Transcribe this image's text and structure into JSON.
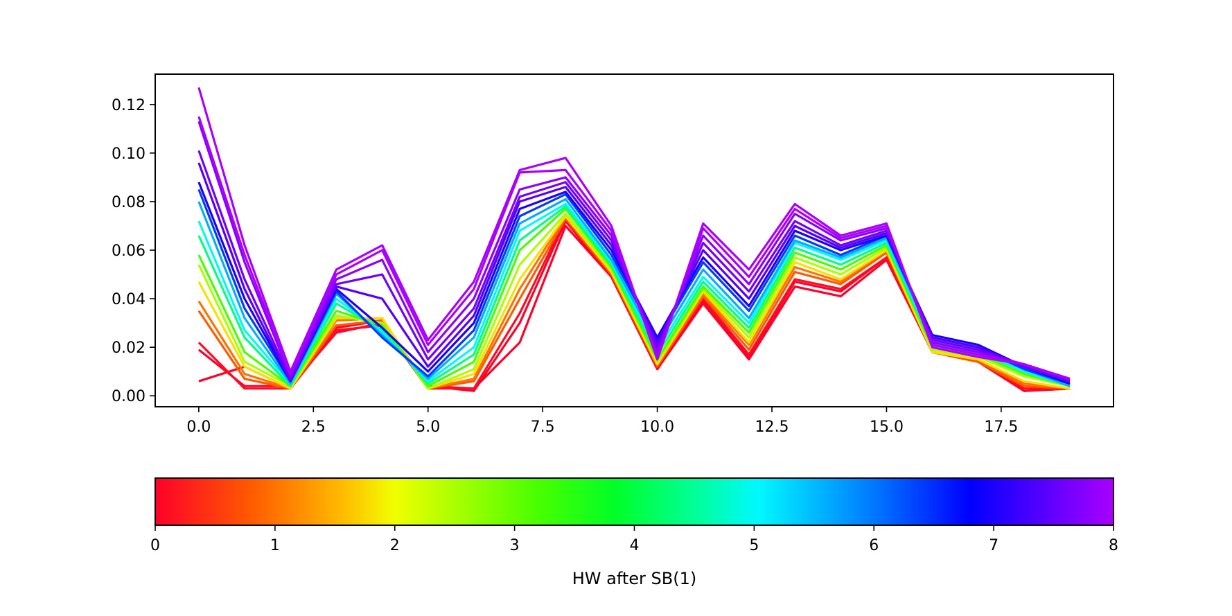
{
  "chart_data": {
    "type": "line",
    "title": "",
    "xlabel": "",
    "ylabel": "",
    "xlim": [
      -0.95,
      19.95
    ],
    "ylim": [
      -0.0045,
      0.1325
    ],
    "x_ticks": [
      "0.0",
      "2.5",
      "5.0",
      "7.5",
      "10.0",
      "12.5",
      "15.0",
      "17.5"
    ],
    "y_ticks": [
      "0.00",
      "0.02",
      "0.04",
      "0.06",
      "0.08",
      "0.10",
      "0.12"
    ],
    "x": [
      0,
      1,
      2,
      3,
      4,
      5,
      6,
      7,
      8,
      9,
      10,
      11,
      12,
      13,
      14,
      15,
      16,
      17,
      18,
      19
    ],
    "grid": false,
    "colormap": "gist_rainbow (red → orange → yellow → green → cyan → blue → violet)",
    "series": [
      {
        "hw": 0.0,
        "values": [
          0.006,
          0.012,
          0.003,
          0.028,
          0.031,
          0.004,
          0.003,
          0.022,
          0.07,
          0.049,
          0.011,
          0.038,
          0.015,
          0.045,
          0.041,
          0.056,
          0.018,
          0.014,
          0.002,
          0.003
        ]
      },
      {
        "hw": 0.0,
        "values": [
          0.019,
          0.004,
          0.004,
          0.026,
          0.03,
          0.004,
          0.002,
          0.03,
          0.072,
          0.049,
          0.011,
          0.039,
          0.016,
          0.047,
          0.043,
          0.057,
          0.018,
          0.014,
          0.002,
          0.003
        ]
      },
      {
        "hw": 0.1,
        "values": [
          0.022,
          0.003,
          0.003,
          0.027,
          0.029,
          0.003,
          0.003,
          0.034,
          0.073,
          0.05,
          0.012,
          0.04,
          0.017,
          0.048,
          0.044,
          0.057,
          0.018,
          0.014,
          0.003,
          0.003
        ]
      },
      {
        "hw": 0.8,
        "values": [
          0.035,
          0.007,
          0.003,
          0.029,
          0.031,
          0.003,
          0.006,
          0.04,
          0.073,
          0.05,
          0.012,
          0.041,
          0.019,
          0.051,
          0.046,
          0.059,
          0.018,
          0.014,
          0.004,
          0.003
        ]
      },
      {
        "hw": 1.0,
        "values": [
          0.039,
          0.009,
          0.003,
          0.031,
          0.032,
          0.003,
          0.007,
          0.044,
          0.074,
          0.051,
          0.013,
          0.042,
          0.021,
          0.053,
          0.047,
          0.06,
          0.018,
          0.015,
          0.005,
          0.003
        ]
      },
      {
        "hw": 1.8,
        "values": [
          0.047,
          0.012,
          0.003,
          0.032,
          0.032,
          0.003,
          0.009,
          0.048,
          0.074,
          0.051,
          0.013,
          0.043,
          0.022,
          0.055,
          0.048,
          0.06,
          0.018,
          0.015,
          0.006,
          0.003
        ]
      },
      {
        "hw": 2.5,
        "values": [
          0.054,
          0.014,
          0.004,
          0.033,
          0.03,
          0.003,
          0.011,
          0.054,
          0.075,
          0.052,
          0.014,
          0.044,
          0.024,
          0.057,
          0.05,
          0.061,
          0.019,
          0.016,
          0.008,
          0.004
        ]
      },
      {
        "hw": 3.2,
        "values": [
          0.058,
          0.018,
          0.004,
          0.035,
          0.029,
          0.004,
          0.014,
          0.06,
          0.077,
          0.053,
          0.015,
          0.045,
          0.026,
          0.059,
          0.052,
          0.062,
          0.02,
          0.017,
          0.009,
          0.004
        ]
      },
      {
        "hw": 4.4,
        "values": [
          0.066,
          0.024,
          0.004,
          0.038,
          0.027,
          0.005,
          0.017,
          0.064,
          0.078,
          0.054,
          0.017,
          0.047,
          0.028,
          0.061,
          0.054,
          0.063,
          0.021,
          0.018,
          0.01,
          0.004
        ]
      },
      {
        "hw": 5.0,
        "values": [
          0.072,
          0.027,
          0.005,
          0.04,
          0.026,
          0.006,
          0.02,
          0.068,
          0.079,
          0.055,
          0.019,
          0.049,
          0.03,
          0.063,
          0.056,
          0.064,
          0.022,
          0.019,
          0.01,
          0.004
        ]
      },
      {
        "hw": 5.6,
        "values": [
          0.08,
          0.032,
          0.005,
          0.042,
          0.025,
          0.007,
          0.024,
          0.071,
          0.081,
          0.056,
          0.021,
          0.052,
          0.032,
          0.064,
          0.057,
          0.065,
          0.023,
          0.019,
          0.011,
          0.004
        ]
      },
      {
        "hw": 6.4,
        "values": [
          0.085,
          0.036,
          0.006,
          0.043,
          0.024,
          0.008,
          0.027,
          0.074,
          0.083,
          0.058,
          0.023,
          0.055,
          0.035,
          0.066,
          0.058,
          0.066,
          0.024,
          0.02,
          0.011,
          0.005
        ]
      },
      {
        "hw": 7.0,
        "values": [
          0.088,
          0.04,
          0.006,
          0.044,
          0.028,
          0.01,
          0.03,
          0.077,
          0.084,
          0.06,
          0.024,
          0.057,
          0.037,
          0.068,
          0.06,
          0.066,
          0.025,
          0.021,
          0.012,
          0.005
        ]
      },
      {
        "hw": 7.4,
        "values": [
          0.096,
          0.044,
          0.006,
          0.045,
          0.04,
          0.012,
          0.033,
          0.08,
          0.086,
          0.062,
          0.022,
          0.06,
          0.04,
          0.07,
          0.061,
          0.067,
          0.024,
          0.02,
          0.012,
          0.006
        ]
      },
      {
        "hw": 7.6,
        "values": [
          0.101,
          0.048,
          0.007,
          0.046,
          0.05,
          0.015,
          0.036,
          0.082,
          0.088,
          0.064,
          0.02,
          0.063,
          0.043,
          0.072,
          0.062,
          0.068,
          0.023,
          0.019,
          0.012,
          0.006
        ]
      },
      {
        "hw": 7.8,
        "values": [
          0.113,
          0.055,
          0.008,
          0.048,
          0.056,
          0.018,
          0.04,
          0.085,
          0.09,
          0.066,
          0.018,
          0.066,
          0.046,
          0.075,
          0.064,
          0.069,
          0.022,
          0.018,
          0.013,
          0.007
        ]
      },
      {
        "hw": 8.0,
        "values": [
          0.115,
          0.058,
          0.009,
          0.05,
          0.06,
          0.021,
          0.044,
          0.092,
          0.093,
          0.068,
          0.016,
          0.069,
          0.049,
          0.077,
          0.065,
          0.07,
          0.021,
          0.017,
          0.013,
          0.007
        ]
      },
      {
        "hw": 8.0,
        "values": [
          0.127,
          0.062,
          0.01,
          0.052,
          0.062,
          0.023,
          0.047,
          0.093,
          0.098,
          0.07,
          0.015,
          0.071,
          0.052,
          0.079,
          0.066,
          0.071,
          0.02,
          0.016,
          0.013,
          0.007
        ]
      }
    ],
    "colorbar": {
      "label": "HW after SB(1)",
      "range": [
        0,
        8
      ],
      "ticks": [
        "0",
        "1",
        "2",
        "3",
        "4",
        "5",
        "6",
        "7",
        "8"
      ]
    }
  }
}
